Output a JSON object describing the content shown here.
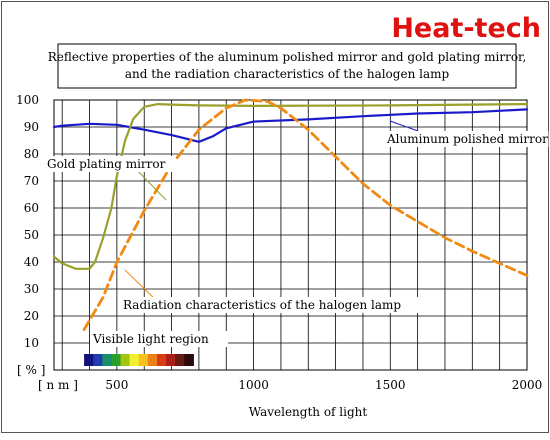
{
  "brand": {
    "name": "Heat-tech",
    "color": "#e0120f"
  },
  "title_lines": [
    "Reflective properties of the aluminum polished mirror and gold plating mirror,",
    "and the radiation characteristics of the halogen lamp"
  ],
  "chart_data": {
    "type": "line",
    "title": "Reflective properties of the aluminum polished mirror and gold plating mirror, and the radiation characteristics of the halogen lamp",
    "xlabel": "Wavelength of light",
    "x_unit": "[ n m ]",
    "y_unit": "[ % ]",
    "xlim": [
      270,
      2000
    ],
    "ylim": [
      0,
      100
    ],
    "x_ticks": [
      500,
      1000,
      1500,
      2000
    ],
    "y_ticks": [
      10,
      20,
      30,
      40,
      50,
      60,
      70,
      80,
      90,
      100
    ],
    "grid": true,
    "series": [
      {
        "name": "Aluminum polished mirror",
        "color": "#1a1acc",
        "style": "solid",
        "points": [
          [
            270,
            90
          ],
          [
            300,
            90.5
          ],
          [
            400,
            91.2
          ],
          [
            500,
            90.8
          ],
          [
            600,
            89
          ],
          [
            700,
            87
          ],
          [
            800,
            84.5
          ],
          [
            850,
            86.5
          ],
          [
            900,
            89.5
          ],
          [
            1000,
            92
          ],
          [
            1200,
            92.8
          ],
          [
            1400,
            94
          ],
          [
            1600,
            95
          ],
          [
            1800,
            95.5
          ],
          [
            2000,
            96.5
          ]
        ]
      },
      {
        "name": "Gold plating mirror",
        "color": "#9aa028",
        "style": "solid",
        "points": [
          [
            270,
            42
          ],
          [
            300,
            39.5
          ],
          [
            350,
            37.5
          ],
          [
            400,
            37.5
          ],
          [
            420,
            40
          ],
          [
            450,
            49
          ],
          [
            480,
            60
          ],
          [
            500,
            72
          ],
          [
            530,
            85
          ],
          [
            560,
            93
          ],
          [
            600,
            97.5
          ],
          [
            650,
            98.5
          ],
          [
            700,
            98.3
          ],
          [
            800,
            98
          ],
          [
            1000,
            97.8
          ],
          [
            1500,
            98
          ],
          [
            2000,
            98.5
          ]
        ]
      },
      {
        "name": "Radiation characteristics of the halogen lamp",
        "color": "#f08a10",
        "style": "dashed",
        "points": [
          [
            380,
            15
          ],
          [
            450,
            27
          ],
          [
            500,
            40
          ],
          [
            600,
            59
          ],
          [
            700,
            76
          ],
          [
            800,
            89
          ],
          [
            900,
            97
          ],
          [
            970,
            100
          ],
          [
            1050,
            99.5
          ],
          [
            1100,
            97
          ],
          [
            1200,
            89
          ],
          [
            1300,
            79
          ],
          [
            1400,
            69
          ],
          [
            1500,
            61
          ],
          [
            1600,
            55
          ],
          [
            1700,
            49
          ],
          [
            1800,
            44
          ],
          [
            1900,
            39.5
          ],
          [
            2000,
            35
          ]
        ]
      }
    ],
    "annotations": [
      {
        "text": "Aluminum polished mirror",
        "series": 0
      },
      {
        "text": "Gold plating mirror",
        "series": 1
      },
      {
        "text": "Radiation characteristics of the halogen lamp",
        "series": 2
      },
      {
        "text": "Visible light region"
      }
    ],
    "visible_spectrum_colors": [
      "#14127a",
      "#1f3cb0",
      "#1a8e6a",
      "#2aa02a",
      "#a4c414",
      "#f2ee30",
      "#f8c020",
      "#ee8218",
      "#d83c14",
      "#a82014",
      "#6a1812",
      "#2a0a0a"
    ]
  }
}
